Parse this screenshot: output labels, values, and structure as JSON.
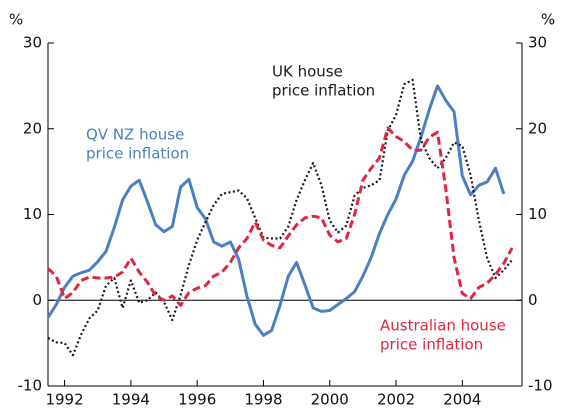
{
  "chart_data": {
    "type": "line",
    "y_label": "%",
    "y2_label": "%",
    "x": [
      1991.5,
      1991.75,
      1992,
      1992.25,
      1992.5,
      1992.75,
      1993,
      1993.25,
      1993.5,
      1993.75,
      1994,
      1994.25,
      1994.5,
      1994.75,
      1995,
      1995.25,
      1995.5,
      1995.75,
      1996,
      1996.25,
      1996.5,
      1996.75,
      1997,
      1997.25,
      1997.5,
      1997.75,
      1998,
      1998.25,
      1998.5,
      1998.75,
      1999,
      1999.25,
      1999.5,
      1999.75,
      2000,
      2000.25,
      2000.5,
      2000.75,
      2001,
      2001.25,
      2001.5,
      2001.75,
      2002,
      2002.25,
      2002.5,
      2002.75,
      2003,
      2003.25,
      2003.5,
      2003.75,
      2004,
      2004.25,
      2004.5,
      2004.75,
      2005,
      2005.25,
      2005.5
    ],
    "xlim": [
      1991.5,
      2005.8
    ],
    "xticks": [
      1992,
      1994,
      1996,
      1998,
      2000,
      2002,
      2004
    ],
    "ylim": [
      -10,
      30
    ],
    "yticks": [
      -10,
      0,
      10,
      20,
      30
    ],
    "y2lim": [
      -10,
      30
    ],
    "y2ticks": [
      -10,
      0,
      10,
      20,
      30
    ],
    "zero_line": true,
    "series": [
      {
        "name": [
          "QV NZ house",
          "price inflation"
        ],
        "color": "#4a7fc1",
        "style": "solid",
        "values": [
          -2,
          -0.5,
          1.5,
          2.8,
          3.2,
          3.5,
          4.5,
          5.7,
          8.5,
          11.7,
          13.3,
          14,
          11.5,
          8.8,
          8,
          8.6,
          13.2,
          14.1,
          10.8,
          9.5,
          6.8,
          6.3,
          6.8,
          4.8,
          0.5,
          -2.8,
          -4.1,
          -3.5,
          -0.6,
          2.8,
          4.4,
          1.8,
          -0.9,
          -1.3,
          -1.2,
          -0.5,
          0.2,
          1,
          2.8,
          5,
          7.8,
          10,
          11.8,
          14.6,
          16.2,
          19,
          22.2,
          25,
          23.3,
          22,
          14.5,
          12.3,
          13.4,
          13.8,
          15.4,
          12.4,
          null
        ]
      },
      {
        "name": [
          "UK house",
          "price inflation"
        ],
        "color": "#1a1a1a",
        "style": "dotted",
        "values": [
          -4.4,
          -4.9,
          -5,
          -6.4,
          -4,
          -2.1,
          -1.2,
          1.7,
          2.6,
          -0.9,
          2.3,
          -0.3,
          0,
          0.9,
          -0.2,
          -2.3,
          0.6,
          4.1,
          7,
          9.1,
          11.1,
          12.4,
          12.6,
          12.8,
          11.9,
          9.6,
          7.3,
          7.2,
          7.2,
          8.6,
          11.7,
          14,
          16,
          13.4,
          9.3,
          7.9,
          8.7,
          12.2,
          13.1,
          13.4,
          14,
          19.8,
          21.6,
          25.2,
          25.7,
          18.7,
          16.6,
          15.4,
          16.6,
          18.4,
          18,
          14.6,
          9.3,
          4.9,
          2.6,
          3.5,
          4.7
        ]
      },
      {
        "name": [
          "Australian house",
          "price inflation"
        ],
        "color": "#e0263f",
        "style": "dashed",
        "values": [
          3.7,
          2.8,
          0.2,
          0.9,
          2.3,
          2.7,
          2.6,
          2.6,
          2.7,
          3.3,
          4.9,
          3.3,
          2.1,
          0.5,
          0,
          0.5,
          -0.6,
          0.9,
          1.4,
          1.7,
          2.8,
          3.3,
          4.4,
          6.1,
          7.2,
          9.1,
          7,
          6.4,
          6.1,
          7.5,
          8.8,
          9.6,
          9.8,
          9.6,
          7.6,
          6.8,
          7.2,
          10,
          14,
          15.4,
          16.6,
          20.1,
          19.1,
          18.5,
          17.5,
          17.5,
          19,
          19.6,
          13,
          5,
          0.8,
          0.2,
          1.5,
          2,
          3,
          4.3,
          6.1
        ]
      }
    ]
  }
}
